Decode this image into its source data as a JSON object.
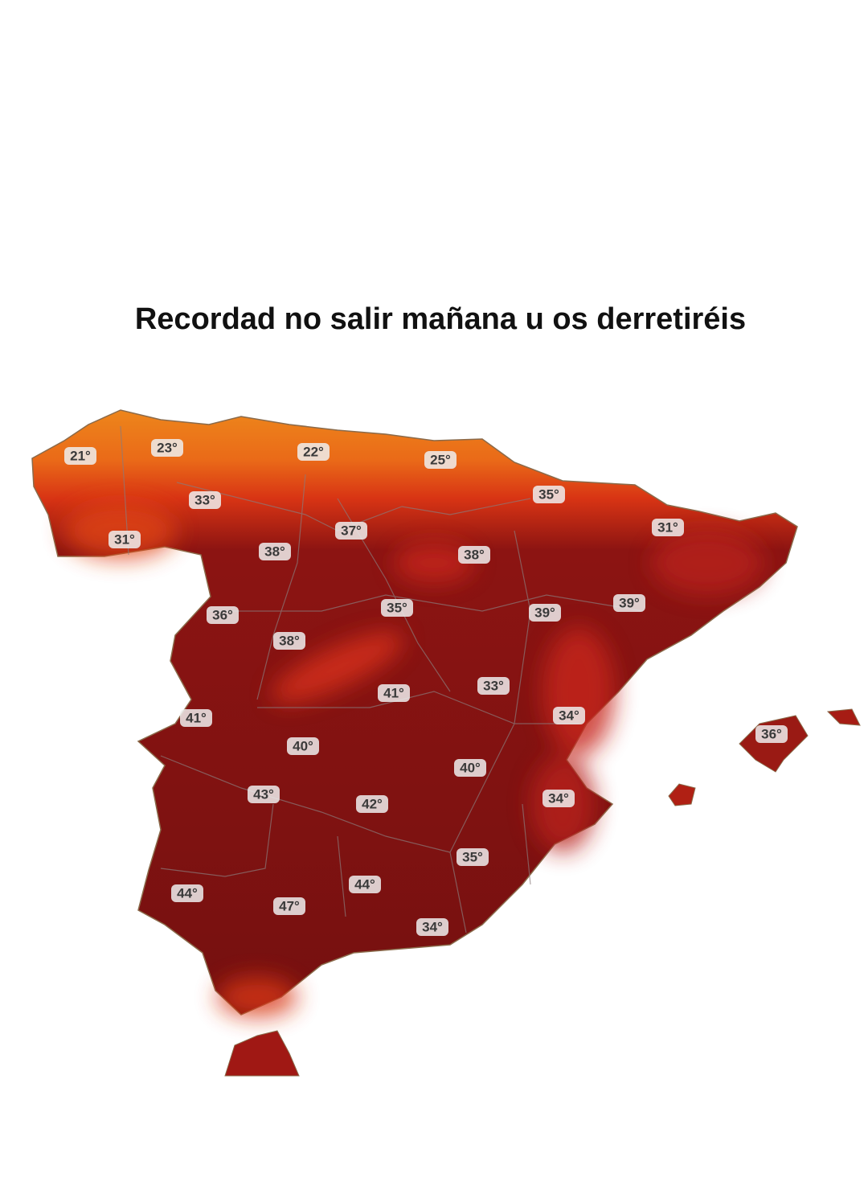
{
  "title": "Recordad no salir mañana u os derretiréis",
  "labels": [
    "21°",
    "23°",
    "22°",
    "25°",
    "35°",
    "33°",
    "31°",
    "37°",
    "31°",
    "38°",
    "38°",
    "35°",
    "39°",
    "39°",
    "36°",
    "38°",
    "33°",
    "41°",
    "34°",
    "41°",
    "36°",
    "40°",
    "40°",
    "43°",
    "34°",
    "42°",
    "35°",
    "44°",
    "44°",
    "47°",
    "34°"
  ]
}
